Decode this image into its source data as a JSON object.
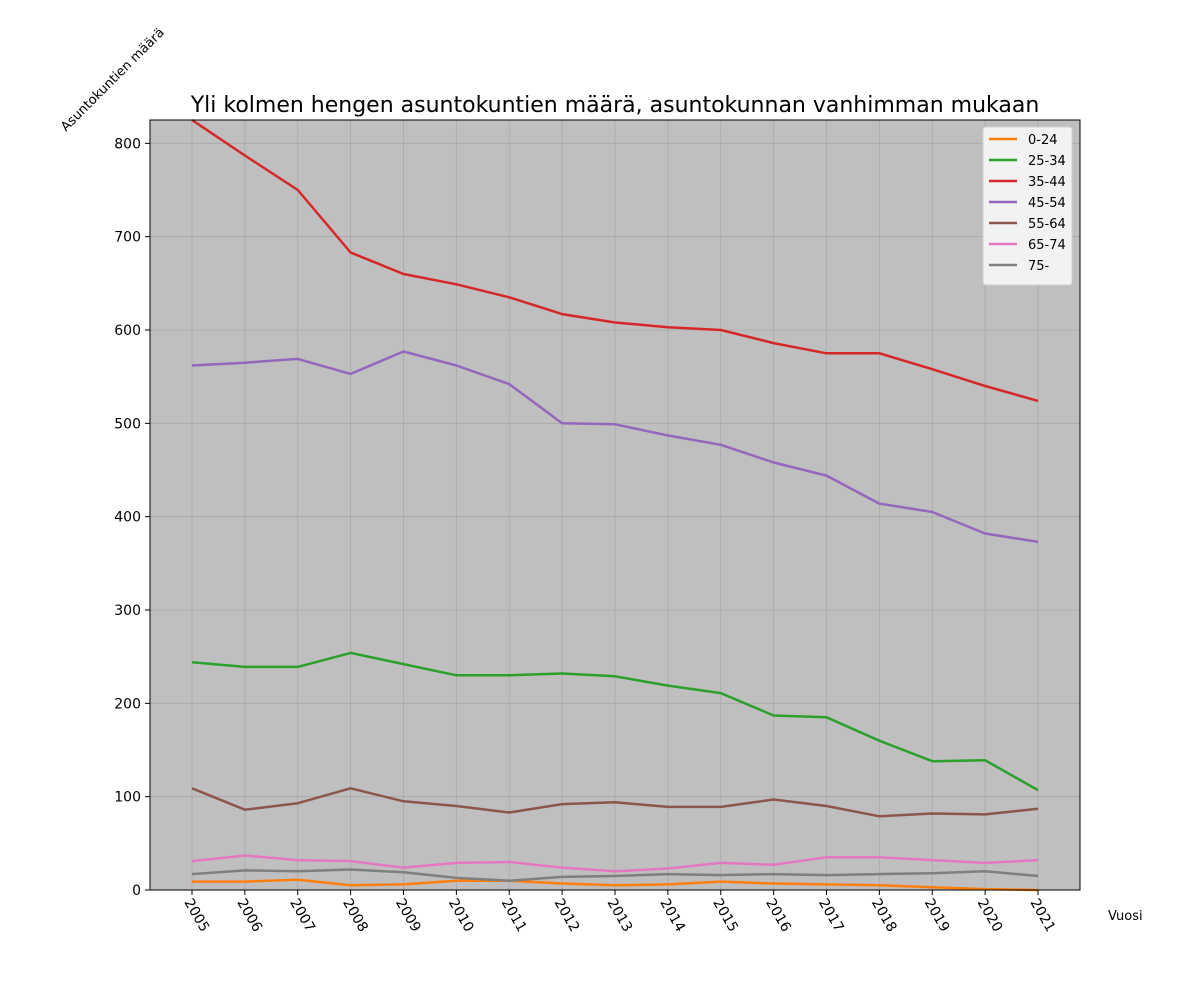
{
  "chart_data": {
    "type": "line",
    "title": "Yli kolmen hengen asuntokuntien määrä, asuntokunnan vanhimman mukaan",
    "xlabel": "Vuosi",
    "ylabel": "Asuntokuntien määrä",
    "categories": [
      "2005",
      "2006",
      "2007",
      "2008",
      "2009",
      "2010",
      "2011",
      "2012",
      "2013",
      "2014",
      "2015",
      "2016",
      "2017",
      "2018",
      "2019",
      "2020",
      "2021"
    ],
    "ylim": [
      0,
      825
    ],
    "yticks": [
      0,
      100,
      200,
      300,
      400,
      500,
      600,
      700,
      800
    ],
    "grid": true,
    "legend_position": "top-right",
    "background_color": "#bfbfbf",
    "series": [
      {
        "name": "0-24",
        "color": "#ff7f0e",
        "values": [
          9,
          9,
          11,
          5,
          6,
          10,
          10,
          7,
          5,
          6,
          9,
          7,
          6,
          5,
          3,
          1,
          0
        ]
      },
      {
        "name": "25-34",
        "color": "#2ca02c",
        "values": [
          244,
          239,
          239,
          254,
          242,
          230,
          230,
          232,
          229,
          219,
          211,
          187,
          185,
          160,
          138,
          139,
          107
        ]
      },
      {
        "name": "35-44",
        "color": "#d62728",
        "values": [
          825,
          787,
          750,
          683,
          660,
          649,
          635,
          617,
          608,
          603,
          600,
          586,
          575,
          575,
          558,
          540,
          524
        ]
      },
      {
        "name": "45-54",
        "color": "#9467bd",
        "values": [
          562,
          565,
          569,
          553,
          577,
          562,
          542,
          500,
          499,
          487,
          477,
          458,
          444,
          414,
          405,
          382,
          373
        ]
      },
      {
        "name": "55-64",
        "color": "#8c564b",
        "values": [
          109,
          86,
          93,
          109,
          95,
          90,
          83,
          92,
          94,
          89,
          89,
          97,
          90,
          79,
          82,
          81,
          87
        ]
      },
      {
        "name": "65-74",
        "color": "#e377c2",
        "values": [
          31,
          37,
          32,
          31,
          24,
          29,
          30,
          24,
          20,
          23,
          29,
          27,
          35,
          35,
          32,
          29,
          32
        ]
      },
      {
        "name": "75-",
        "color": "#7f7f7f",
        "values": [
          17,
          21,
          20,
          22,
          19,
          13,
          10,
          14,
          15,
          17,
          16,
          17,
          16,
          17,
          18,
          20,
          15
        ]
      }
    ]
  }
}
